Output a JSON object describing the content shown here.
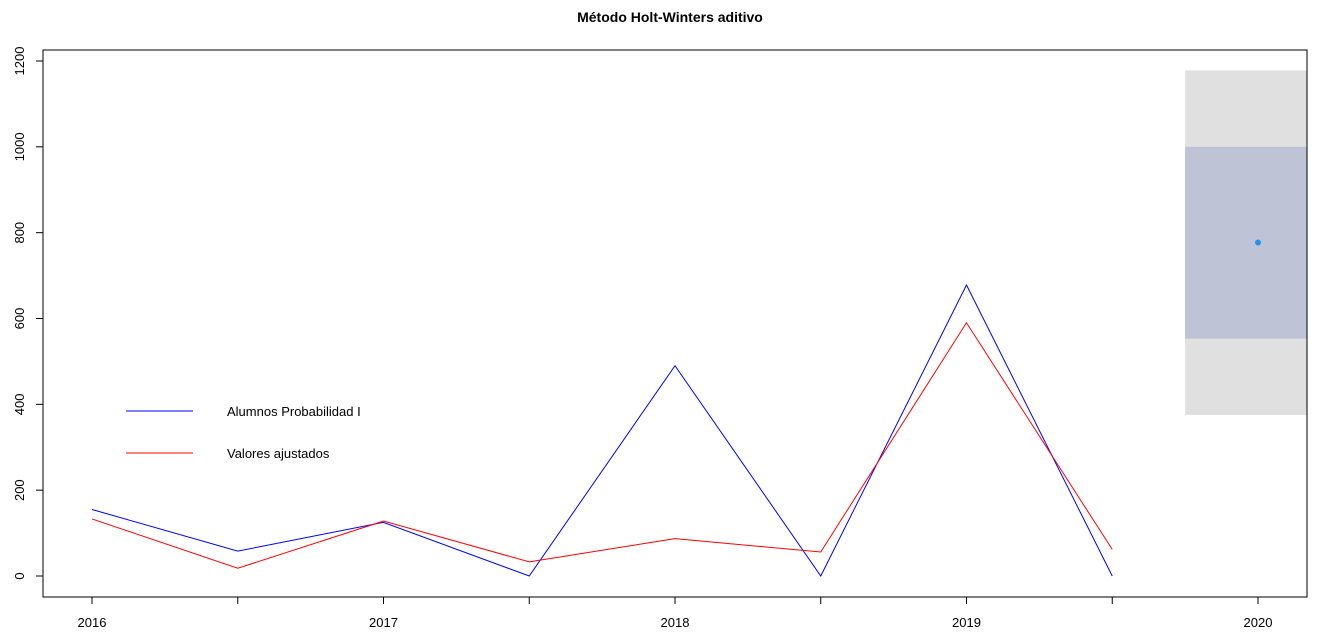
{
  "chart_data": {
    "type": "line",
    "title": "Método Holt-Winters aditivo",
    "xlabel": "",
    "ylabel": "",
    "xlim": [
      2016,
      2020
    ],
    "ylim": [
      0,
      1200
    ],
    "x_ticks": [
      {
        "value": 2016,
        "label": "2016"
      },
      {
        "value": 2016.5,
        "label": ""
      },
      {
        "value": 2017,
        "label": "2017"
      },
      {
        "value": 2017.5,
        "label": ""
      },
      {
        "value": 2018,
        "label": "2018"
      },
      {
        "value": 2018.5,
        "label": ""
      },
      {
        "value": 2019,
        "label": "2019"
      },
      {
        "value": 2019.5,
        "label": ""
      },
      {
        "value": 2020,
        "label": "2020"
      }
    ],
    "y_ticks": [
      {
        "value": 0,
        "label": "0"
      },
      {
        "value": 200,
        "label": "200"
      },
      {
        "value": 400,
        "label": "400"
      },
      {
        "value": 600,
        "label": "600"
      },
      {
        "value": 800,
        "label": "800"
      },
      {
        "value": 1000,
        "label": "1000"
      },
      {
        "value": 1200,
        "label": "1200"
      }
    ],
    "grid": false,
    "legend_position": "center-left",
    "series": [
      {
        "name": "Alumnos Probabilidad I",
        "color": "#0000ff",
        "x": [
          2016,
          2016.5,
          2017,
          2017.5,
          2018,
          2018.5,
          2019,
          2019.5
        ],
        "values": [
          155,
          58,
          125,
          0,
          490,
          0,
          678,
          0
        ]
      },
      {
        "name": "Valores ajustados",
        "color": "#ff0000",
        "x": [
          2016,
          2016.5,
          2017,
          2017.5,
          2018,
          2018.5,
          2019,
          2019.5
        ],
        "values": [
          133,
          18,
          128,
          33,
          87,
          56,
          590,
          62
        ]
      }
    ],
    "forecast": {
      "x": 2020,
      "x_range": [
        2019.75,
        2020.25
      ],
      "point": 777,
      "interval_80": [
        553,
        1000
      ],
      "interval_95": [
        375,
        1178
      ],
      "point_color": "#2b8fe8",
      "band_80_color": "#bfc3d6",
      "band_95_color": "#e0e0e0"
    }
  }
}
